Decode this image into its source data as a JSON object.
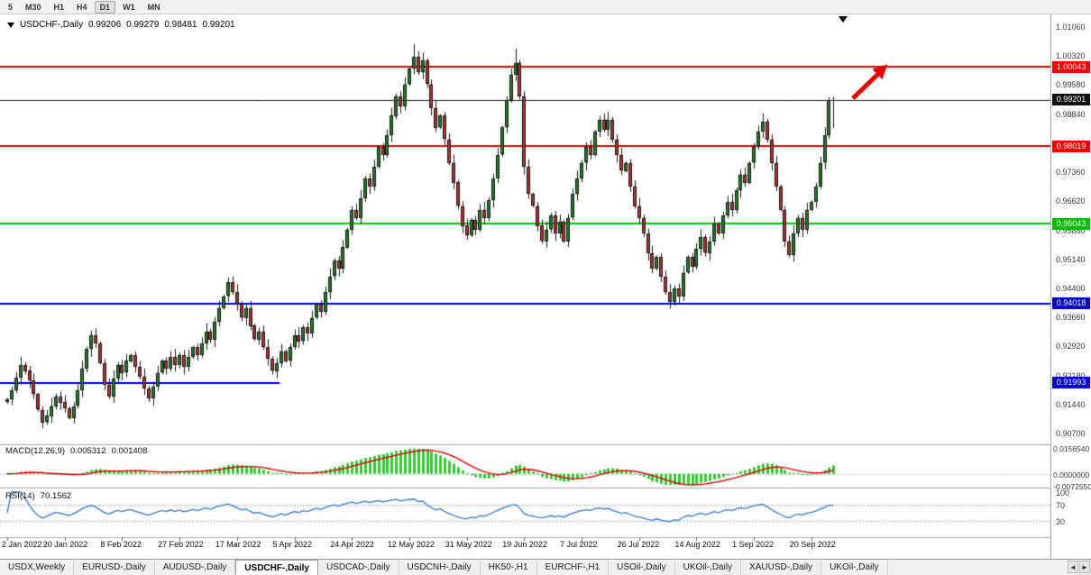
{
  "toolbar": {
    "timeframes": [
      "5",
      "M30",
      "H1",
      "H4",
      "D1",
      "W1",
      "MN"
    ],
    "active_timeframe": "D1"
  },
  "chart_header": {
    "symbol_period": "USDCHF-,Daily",
    "open": "0.99206",
    "high": "0.99279",
    "low": "0.98481",
    "close": "0.99201"
  },
  "price_axis": {
    "labels": [
      "1.01060",
      "1.00320",
      "0.99580",
      "0.98840",
      "0.98100",
      "0.97360",
      "0.96620",
      "0.95880",
      "0.95140",
      "0.94400",
      "0.93660",
      "0.92920",
      "0.92180",
      "0.91440",
      "0.90700"
    ],
    "badges": [
      {
        "text": "1.00043",
        "color": "#ee0000"
      },
      {
        "text": "0.99201",
        "color": "#111111"
      },
      {
        "text": "0.98019",
        "color": "#ee0000"
      },
      {
        "text": "0.96043",
        "color": "#00bb00"
      },
      {
        "text": "0.94018",
        "color": "#0000cc"
      },
      {
        "text": "0.91993",
        "color": "#0000cc"
      }
    ]
  },
  "macd_panel": {
    "label": "MACD(12,26,9)",
    "value_main": "0.005312",
    "value_signal": "0.001408",
    "axis_labels": [
      "0.0156540",
      "0.0000000",
      "-0.0072550"
    ]
  },
  "rsi_panel": {
    "label": "RSI(14)",
    "value": "70.1562",
    "axis_labels": [
      "100",
      "70",
      "30"
    ],
    "levels": [
      70,
      30
    ]
  },
  "date_axis": {
    "labels": [
      "2 Jan 2022",
      "20 Jan 2022",
      "8 Feb 2022",
      "27 Feb 2022",
      "17 Mar 2022",
      "5 Apr 2022",
      "24 Apr 2022",
      "12 May 2022",
      "31 May 2022",
      "19 Jun 2022",
      "7 Jul 2022",
      "26 Jul 2022",
      "14 Aug 2022",
      "1 Sep 2022",
      "20 Sep 2022"
    ]
  },
  "tab_bar": {
    "tabs": [
      "USDX,Weekly",
      "EURUSD-,Daily",
      "AUDUSD-,Daily",
      "USDCHF-,Daily",
      "USDCAD-,Daily",
      "USDCNH-,Daily",
      "HK50-,H1",
      "EURCHF-,H1",
      "USOil-,Daily",
      "UKOil-,Daily",
      "XAUUSD-,Daily",
      "UKOil-,Daily"
    ],
    "active": "USDCHF-,Daily",
    "scroll_left": "◄",
    "scroll_right": "►"
  },
  "colors": {
    "bull": "#1e7d1e",
    "bear": "#b03030",
    "wick": "#1a1a1a",
    "macd_hist": "#33cc33",
    "macd_signal": "#dd0000",
    "rsi_line": "#3377cc",
    "level_red": "#ee0000",
    "level_green": "#00cc00",
    "level_blue": "#0000dd",
    "bid_line": "#222222",
    "arrow_red": "#e60000"
  },
  "chart_data": {
    "type": "candlestick",
    "symbol": "USDCHF-",
    "period": "Daily",
    "x_label_step": 13,
    "open_first": 0.915,
    "closes": [
      0.9157,
      0.918,
      0.9212,
      0.9245,
      0.923,
      0.9205,
      0.917,
      0.913,
      0.9098,
      0.9115,
      0.914,
      0.9165,
      0.915,
      0.9135,
      0.911,
      0.914,
      0.918,
      0.9235,
      0.9285,
      0.932,
      0.93,
      0.925,
      0.9195,
      0.9165,
      0.921,
      0.9245,
      0.9225,
      0.9255,
      0.927,
      0.924,
      0.9215,
      0.9185,
      0.916,
      0.919,
      0.9225,
      0.9255,
      0.9235,
      0.9265,
      0.9245,
      0.927,
      0.924,
      0.9265,
      0.929,
      0.927,
      0.93,
      0.933,
      0.931,
      0.9355,
      0.939,
      0.942,
      0.9455,
      0.943,
      0.94,
      0.9365,
      0.939,
      0.9345,
      0.931,
      0.933,
      0.929,
      0.926,
      0.923,
      0.925,
      0.928,
      0.9255,
      0.929,
      0.932,
      0.9305,
      0.934,
      0.9325,
      0.9365,
      0.94,
      0.938,
      0.943,
      0.947,
      0.951,
      0.949,
      0.9545,
      0.959,
      0.964,
      0.962,
      0.967,
      0.972,
      0.97,
      0.975,
      0.98,
      0.978,
      0.983,
      0.988,
      0.993,
      0.9905,
      0.996,
      1.0,
      1.003,
      0.999,
      1.002,
      0.996,
      0.99,
      0.985,
      0.988,
      0.982,
      0.976,
      0.971,
      0.965,
      0.96,
      0.9575,
      0.9615,
      0.959,
      0.964,
      0.962,
      0.9665,
      0.972,
      0.978,
      0.985,
      0.992,
      0.9985,
      1.0015,
      0.993,
      0.975,
      0.968,
      0.965,
      0.96,
      0.956,
      0.959,
      0.9625,
      0.958,
      0.961,
      0.956,
      0.962,
      0.968,
      0.972,
      0.976,
      0.98,
      0.978,
      0.984,
      0.987,
      0.9845,
      0.987,
      0.982,
      0.978,
      0.974,
      0.976,
      0.97,
      0.965,
      0.962,
      0.958,
      0.953,
      0.949,
      0.952,
      0.947,
      0.943,
      0.9405,
      0.944,
      0.942,
      0.948,
      0.952,
      0.9495,
      0.954,
      0.957,
      0.953,
      0.956,
      0.9605,
      0.958,
      0.9625,
      0.966,
      0.964,
      0.969,
      0.973,
      0.971,
      0.976,
      0.98,
      0.984,
      0.9865,
      0.982,
      0.976,
      0.97,
      0.964,
      0.956,
      0.9525,
      0.958,
      0.962,
      0.959,
      0.964,
      0.966,
      0.97,
      0.976,
      0.983,
      0.992,
      0.99201
    ],
    "high_overrides": {
      "50": 0.9468,
      "92": 1.0063,
      "115": 1.0051
    },
    "last_candle": {
      "o": 0.99206,
      "h": 0.99279,
      "l": 0.98481,
      "c": 0.99201
    },
    "hlines": [
      {
        "price": 1.00043,
        "color": "#ee0000",
        "width": 2,
        "extent": 1.0
      },
      {
        "price": 0.99201,
        "color": "#222222",
        "width": 1,
        "extent": 1.0
      },
      {
        "price": 0.98019,
        "color": "#ee0000",
        "width": 2,
        "extent": 1.0
      },
      {
        "price": 0.96043,
        "color": "#00cc00",
        "width": 2,
        "extent": 1.0
      },
      {
        "price": 0.94018,
        "color": "#0000dd",
        "width": 2,
        "extent": 1.0
      },
      {
        "price": 0.91993,
        "color": "#0000dd",
        "width": 2,
        "extent": 0.266
      }
    ],
    "indicators": {
      "macd": {
        "fast": 12,
        "slow": 26,
        "signal": 9,
        "current_main": 0.005312,
        "current_signal": 0.001408
      },
      "rsi": {
        "period": 14,
        "current": 70.1562,
        "levels": [
          70,
          30
        ]
      }
    }
  }
}
